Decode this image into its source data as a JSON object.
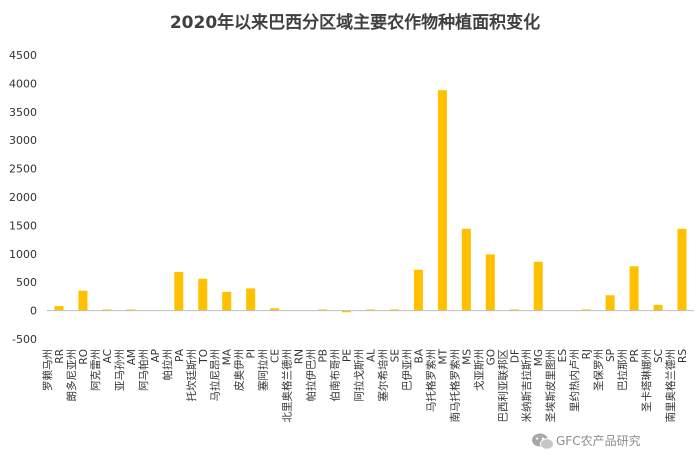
{
  "chart_data": {
    "type": "bar",
    "title": "2020年以来巴西分区域主要农作物种植面积变化",
    "ylim": [
      -500,
      4500
    ],
    "yticks": [
      -500,
      0,
      500,
      1000,
      1500,
      2000,
      2500,
      3000,
      3500,
      4000,
      4500
    ],
    "grid": false,
    "legend": "none",
    "bar_color": "#FFC000",
    "categories": [
      {
        "code": "RR",
        "name": "罗赖马州"
      },
      {
        "code": "RO",
        "name": "朗多尼亚州"
      },
      {
        "code": "AC",
        "name": "阿克雷州"
      },
      {
        "code": "AM",
        "name": "亚马孙州"
      },
      {
        "code": "AP",
        "name": "阿马帕州"
      },
      {
        "code": "PA",
        "name": "帕拉州"
      },
      {
        "code": "TO",
        "name": "托坎廷斯州"
      },
      {
        "code": "MA",
        "name": "马拉尼昂州"
      },
      {
        "code": "PI",
        "name": "皮奥伊州"
      },
      {
        "code": "CE",
        "name": "塞阿拉州"
      },
      {
        "code": "RN",
        "name": "北里奥格兰德州"
      },
      {
        "code": "PB",
        "name": "帕拉伊巴州"
      },
      {
        "code": "PE",
        "name": "伯南布哥州"
      },
      {
        "code": "AL",
        "name": "阿拉戈斯州"
      },
      {
        "code": "SE",
        "name": "塞尔希培州"
      },
      {
        "code": "BA",
        "name": "巴伊亚州"
      },
      {
        "code": "MT",
        "name": "马托格罗索州"
      },
      {
        "code": "MS",
        "name": "南马托格罗索州"
      },
      {
        "code": "GO",
        "name": "戈亚斯州"
      },
      {
        "code": "DF",
        "name": "巴西利亚联邦区"
      },
      {
        "code": "MG",
        "name": "米纳斯吉拉斯州"
      },
      {
        "code": "ES",
        "name": "圣埃斯皮里图州"
      },
      {
        "code": "RJ",
        "name": "里约热内卢州"
      },
      {
        "code": "SP",
        "name": "圣保罗州"
      },
      {
        "code": "PR",
        "name": "巴拉那州"
      },
      {
        "code": "SC",
        "name": "圣卡塔琳娜州"
      },
      {
        "code": "RS",
        "name": "南里奥格兰德州"
      }
    ],
    "values": [
      80,
      350,
      20,
      20,
      0,
      680,
      560,
      330,
      390,
      40,
      0,
      20,
      -30,
      20,
      20,
      720,
      3880,
      1440,
      990,
      20,
      860,
      0,
      20,
      270,
      780,
      100,
      1440
    ]
  },
  "watermark": {
    "text": "GFC农产品研究",
    "icon": "wechat-icon"
  }
}
